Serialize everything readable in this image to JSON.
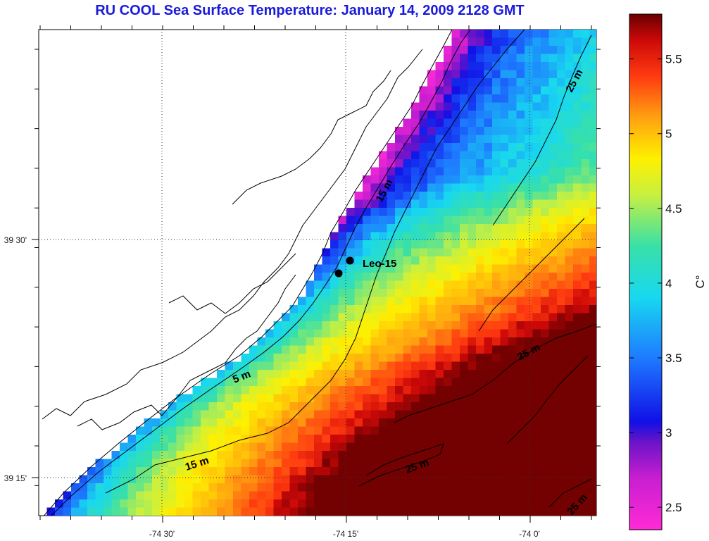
{
  "title": "RU COOL  Sea Surface Temperature:  January 14, 2009 2128 GMT",
  "axes": {
    "x_ticks": [
      {
        "value": -74.5,
        "label": "-74 30'"
      },
      {
        "value": -74.25,
        "label": "-74 15'"
      },
      {
        "value": -74.0,
        "label": "-74 0'"
      }
    ],
    "y_ticks": [
      {
        "value": 39.5,
        "label": "39 30'"
      },
      {
        "value": 39.25,
        "label": "39 15'"
      }
    ],
    "grid": "dotted"
  },
  "colorbar": {
    "unit_label": "C°",
    "min": 2.35,
    "max": 5.8,
    "ticks": [
      "2.5",
      "3",
      "3.5",
      "4",
      "4.5",
      "5",
      "5.5"
    ],
    "tick_values": [
      2.5,
      3.0,
      3.5,
      4.0,
      4.5,
      5.0,
      5.5
    ]
  },
  "contour_labels": [
    "25 m",
    "15 m",
    "5 m",
    "25 m",
    "15 m",
    "25 m",
    "25 m"
  ],
  "station": {
    "name": "Leo-15"
  },
  "land_color": "#ffffff",
  "coast_color": "#000000"
}
